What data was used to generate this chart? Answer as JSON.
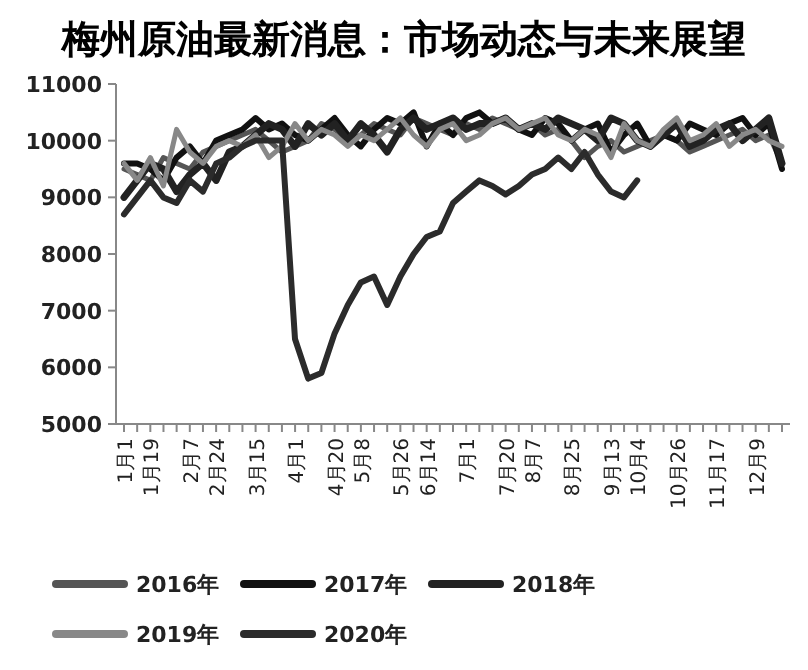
{
  "chart_data": {
    "type": "line",
    "title": "梅州原油最新消息：市场动态与未来展望",
    "categories": [
      "1月1",
      null,
      "1月19",
      null,
      null,
      "2月7",
      null,
      "2月24",
      null,
      null,
      "3月15",
      null,
      null,
      "4月1",
      null,
      null,
      "4月20",
      null,
      "5月8",
      null,
      null,
      "5月26",
      null,
      "6月14",
      null,
      null,
      "7月1",
      null,
      null,
      "7月20",
      null,
      "8月7",
      null,
      null,
      "8月25",
      null,
      null,
      "9月13",
      null,
      "10月4",
      null,
      null,
      "10月26",
      null,
      null,
      "11月17",
      null,
      null,
      "12月9",
      null,
      null
    ],
    "ylim": [
      5000,
      11000
    ],
    "yticks": [
      5000,
      6000,
      7000,
      8000,
      9000,
      10000,
      11000
    ],
    "grid": false,
    "legend": "bottom",
    "series": [
      {
        "name": "2016年",
        "color": "#555555",
        "values": [
          9500,
          9400,
          9300,
          9700,
          9600,
          9500,
          9800,
          9900,
          10000,
          10100,
          10200,
          10000,
          9800,
          9900,
          10000,
          10300,
          10200,
          10000,
          10100,
          10300,
          10200,
          10100,
          10400,
          10300,
          10200,
          10100,
          10300,
          10200,
          10400,
          10300,
          10200,
          10300,
          10100,
          10200,
          10000,
          9700,
          9900,
          10000,
          9800,
          9900,
          10000,
          10100,
          10000,
          9800,
          9900,
          10000,
          10100,
          10200,
          10000,
          10100,
          9600
        ]
      },
      {
        "name": "2017年",
        "color": "#111111",
        "values": [
          9600,
          9600,
          9500,
          9300,
          9700,
          9900,
          9600,
          10000,
          10100,
          10200,
          10400,
          10200,
          10300,
          10100,
          10000,
          10200,
          10400,
          10100,
          9900,
          10200,
          10400,
          10300,
          10500,
          9900,
          10300,
          10100,
          10400,
          10500,
          10300,
          10400,
          10200,
          10100,
          10400,
          10300,
          10000,
          10200,
          10300,
          9800,
          10100,
          10300,
          9900,
          10100,
          10000,
          10300,
          10200,
          10100,
          10300,
          10400,
          10100,
          10300,
          9500
        ]
      },
      {
        "name": "2018年",
        "color": "#222222",
        "values": [
          9000,
          9300,
          9600,
          9500,
          9100,
          9400,
          9600,
          9300,
          9800,
          9900,
          10100,
          10300,
          10200,
          9900,
          10300,
          10100,
          10300,
          10000,
          10300,
          10100,
          9800,
          10200,
          10400,
          10200,
          10300,
          10400,
          10200,
          10300,
          10300,
          10400,
          10200,
          10300,
          10200,
          10400,
          10300,
          10200,
          10000,
          10400,
          10300,
          10000,
          9900,
          10100,
          10300,
          9900,
          10000,
          10200,
          10300,
          10000,
          10200,
          10400,
          9600
        ]
      },
      {
        "name": "2019年",
        "color": "#888888",
        "values": [
          9600,
          9300,
          9700,
          9200,
          10200,
          9800,
          9600,
          9900,
          10000,
          9900,
          10100,
          9700,
          9900,
          10300,
          10000,
          10200,
          10100,
          9900,
          10100,
          10000,
          10200,
          10400,
          10100,
          9900,
          10200,
          10300,
          10000,
          10100,
          10300,
          10400,
          10200,
          10300,
          10400,
          10100,
          10000,
          10200,
          10100,
          9700,
          10300,
          10000,
          9900,
          10200,
          10400,
          10000,
          10100,
          10300,
          9900,
          10100,
          10200,
          10000,
          9900
        ]
      },
      {
        "name": "2020年",
        "color": "#2b2b2b",
        "values": [
          8700,
          9000,
          9300,
          9000,
          8900,
          9300,
          9100,
          9600,
          9700,
          9900,
          10000,
          10000,
          10000,
          6500,
          5800,
          5900,
          6600,
          7100,
          7500,
          7600,
          7100,
          7600,
          8000,
          8300,
          8400,
          8900,
          9100,
          9300,
          9200,
          9050,
          9200,
          9400,
          9500,
          9700,
          9500,
          9800,
          9400,
          9100,
          9000,
          9300,
          null,
          null,
          null,
          null,
          null,
          null,
          null,
          null,
          null,
          null,
          null
        ]
      }
    ]
  }
}
